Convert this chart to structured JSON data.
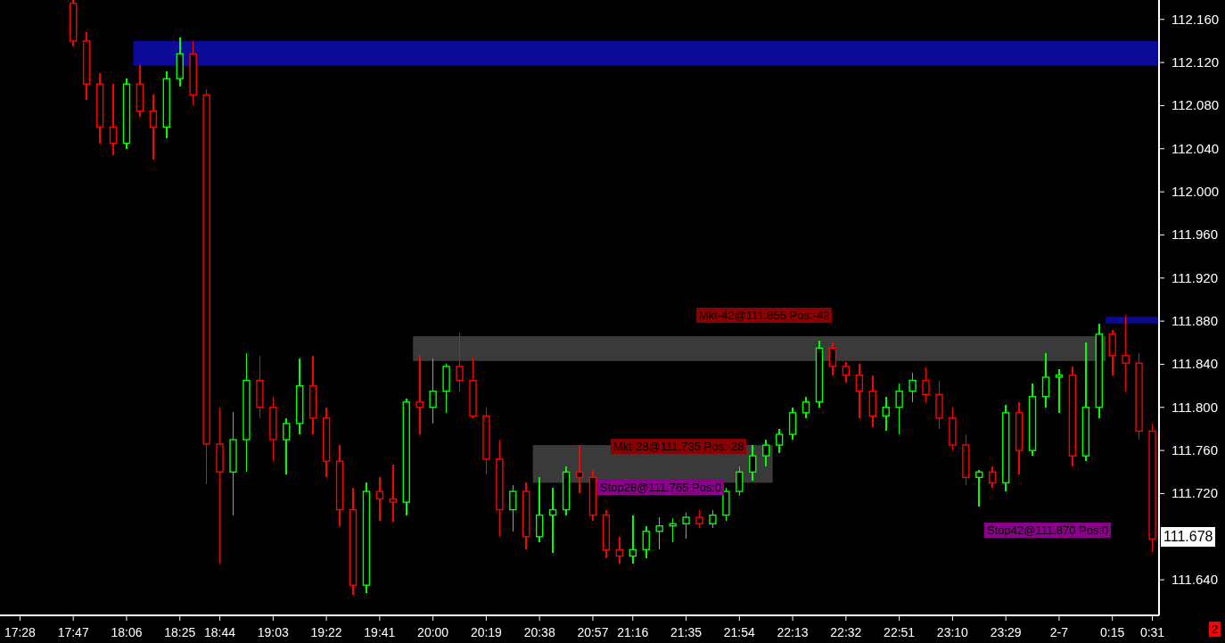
{
  "chart_data": {
    "type": "candlestick",
    "categories": [
      null,
      "17:28",
      null,
      null,
      null,
      "17:47",
      null,
      null,
      null,
      "18:06",
      null,
      null,
      null,
      "18:25",
      null,
      null,
      "18:44",
      null,
      null,
      null,
      "19:03",
      null,
      null,
      null,
      "19:22",
      null,
      null,
      null,
      "19:41",
      null,
      null,
      null,
      "20:00",
      null,
      null,
      null,
      "20:19",
      null,
      null,
      null,
      "20:38",
      null,
      null,
      null,
      "20:57",
      null,
      null,
      "21:16",
      null,
      null,
      null,
      "21:35",
      null,
      null,
      null,
      "21:54",
      null,
      null,
      null,
      "22:13",
      null,
      null,
      null,
      "22:32",
      null,
      null,
      null,
      "22:51",
      null,
      null,
      null,
      "23:10",
      null,
      null,
      null,
      "23:29",
      null,
      null,
      null,
      "2-7",
      null,
      null,
      null,
      "0:15",
      null,
      null,
      "0:31"
    ],
    "ohlc": [
      null,
      null,
      null,
      null,
      null,
      [
        112.175,
        112.178,
        112.135,
        112.14
      ],
      [
        112.14,
        112.148,
        112.085,
        112.1
      ],
      [
        112.1,
        112.11,
        112.045,
        112.06
      ],
      [
        112.06,
        112.1,
        112.034,
        112.045
      ],
      [
        112.045,
        112.105,
        112.04,
        112.1
      ],
      [
        112.1,
        112.118,
        112.07,
        112.075
      ],
      [
        112.075,
        112.09,
        112.03,
        112.06
      ],
      [
        112.06,
        112.112,
        112.05,
        112.105
      ],
      [
        112.105,
        112.143,
        112.098,
        112.128
      ],
      [
        112.128,
        112.14,
        112.08,
        112.09
      ],
      [
        112.09,
        112.095,
        111.729,
        111.766
      ],
      [
        111.766,
        111.8,
        111.655,
        111.74
      ],
      [
        111.74,
        111.796,
        111.7,
        111.77
      ],
      [
        111.77,
        111.85,
        111.74,
        111.825
      ],
      [
        111.825,
        111.848,
        111.79,
        111.8
      ],
      [
        111.8,
        111.81,
        111.75,
        111.77
      ],
      [
        111.77,
        111.79,
        111.738,
        111.785
      ],
      [
        111.785,
        111.845,
        111.775,
        111.82
      ],
      [
        111.82,
        111.848,
        111.775,
        111.79
      ],
      [
        111.79,
        111.8,
        111.735,
        111.75
      ],
      [
        111.75,
        111.765,
        111.69,
        111.705
      ],
      [
        111.705,
        111.725,
        111.626,
        111.635
      ],
      [
        111.635,
        111.73,
        111.628,
        111.722
      ],
      [
        111.722,
        111.735,
        111.695,
        111.715
      ],
      [
        111.715,
        111.747,
        111.694,
        111.712
      ],
      [
        111.712,
        111.808,
        111.7,
        111.805
      ],
      [
        111.805,
        111.848,
        111.775,
        111.8
      ],
      [
        111.8,
        111.845,
        111.785,
        111.815
      ],
      [
        111.815,
        111.84,
        111.795,
        111.838
      ],
      [
        111.838,
        111.869,
        111.815,
        111.825
      ],
      [
        111.825,
        111.845,
        111.79,
        111.792
      ],
      [
        111.792,
        111.8,
        111.738,
        111.752
      ],
      [
        111.752,
        111.77,
        111.68,
        111.705
      ],
      [
        111.705,
        111.728,
        111.685,
        111.722
      ],
      [
        111.722,
        111.73,
        111.668,
        111.68
      ],
      [
        111.68,
        111.735,
        111.675,
        111.7
      ],
      [
        111.7,
        111.725,
        111.665,
        111.705
      ],
      [
        111.705,
        111.745,
        111.7,
        111.74
      ],
      [
        111.74,
        111.765,
        111.72,
        111.735
      ],
      [
        111.735,
        111.742,
        111.695,
        111.7
      ],
      [
        111.7,
        111.705,
        111.66,
        111.668
      ],
      [
        111.668,
        111.68,
        111.655,
        111.662
      ],
      [
        111.662,
        111.7,
        111.655,
        111.668
      ],
      [
        111.668,
        111.69,
        111.66,
        111.685
      ],
      [
        111.685,
        111.698,
        111.668,
        111.69
      ],
      [
        111.69,
        111.697,
        111.675,
        111.692
      ],
      [
        111.692,
        111.702,
        111.678,
        111.698
      ],
      [
        111.698,
        111.705,
        111.688,
        111.692
      ],
      [
        111.692,
        111.705,
        111.688,
        111.7
      ],
      [
        111.7,
        111.725,
        111.695,
        111.722
      ],
      [
        111.722,
        111.745,
        111.718,
        111.74
      ],
      [
        111.74,
        111.765,
        111.732,
        111.755
      ],
      [
        111.755,
        111.77,
        111.745,
        111.765
      ],
      [
        111.765,
        111.78,
        111.758,
        111.775
      ],
      [
        111.775,
        111.8,
        111.77,
        111.795
      ],
      [
        111.795,
        111.81,
        111.79,
        111.805
      ],
      [
        111.805,
        111.862,
        111.8,
        111.855
      ],
      [
        111.855,
        111.86,
        111.83,
        111.838
      ],
      [
        111.838,
        111.842,
        111.823,
        111.83
      ],
      [
        111.83,
        111.84,
        111.79,
        111.815
      ],
      [
        111.815,
        111.83,
        111.782,
        111.792
      ],
      [
        111.792,
        111.81,
        111.778,
        111.8
      ],
      [
        111.8,
        111.822,
        111.775,
        111.815
      ],
      [
        111.815,
        111.832,
        111.805,
        111.825
      ],
      [
        111.825,
        111.837,
        111.805,
        111.812
      ],
      [
        111.812,
        111.825,
        111.78,
        111.79
      ],
      [
        111.79,
        111.8,
        111.76,
        111.765
      ],
      [
        111.765,
        111.775,
        111.728,
        111.735
      ],
      [
        111.735,
        111.742,
        111.708,
        111.74
      ],
      [
        111.74,
        111.745,
        111.725,
        111.73
      ],
      [
        111.73,
        111.802,
        111.722,
        111.795
      ],
      [
        111.795,
        111.805,
        111.738,
        111.76
      ],
      [
        111.76,
        111.822,
        111.755,
        111.81
      ],
      [
        111.81,
        111.85,
        111.8,
        111.828
      ],
      [
        111.828,
        111.835,
        111.795,
        111.83
      ],
      [
        111.83,
        111.838,
        111.745,
        111.755
      ],
      [
        111.755,
        111.86,
        111.75,
        111.8
      ],
      [
        111.8,
        111.878,
        111.79,
        111.868
      ],
      [
        111.868,
        111.872,
        111.83,
        111.848
      ],
      [
        111.848,
        111.885,
        111.815,
        111.841
      ],
      [
        111.841,
        111.85,
        111.77,
        111.778
      ],
      [
        111.778,
        111.785,
        111.666,
        111.678
      ]
    ],
    "colors": [
      null,
      null,
      null,
      null,
      null,
      "#ff0000",
      "#ff0000",
      "#ff0000",
      "#ff0000",
      "#00ff00",
      "#ff0000",
      "#ff0000",
      "#00ff00",
      "#00ff00",
      "#ff0000",
      "#ff0000",
      "#ff0000",
      "#00ff00",
      "#00ff00",
      "#ff0000",
      "#ff0000",
      "#00ff00",
      "#00ff00",
      "#ff0000",
      "#ff0000",
      "#ff0000",
      "#ff0000",
      "#00ff00",
      "#ff0000",
      "#ff0000",
      "#00ff00",
      "#ff0000",
      "#00ff00",
      "#00ff00",
      "#ff0000",
      "#ff0000",
      "#ff0000",
      "#ff0000",
      "#00ff00",
      "#ff0000",
      "#00ff00",
      "#00ff00",
      "#00ff00",
      "#ff0000",
      "#ff0000",
      "#ff0000",
      "#ff0000",
      "#00ff00",
      "#00ff00",
      "#00ff00",
      "#00ff00",
      "#00ff00",
      "#ff0000",
      "#00ff00",
      "#00ff00",
      "#00ff00",
      "#00ff00",
      "#00ff00",
      "#00ff00",
      "#00ff00",
      "#00ff00",
      "#00ff00",
      "#ff0000",
      "#ff0000",
      "#ff0000",
      "#ff0000",
      "#00ff00",
      "#00ff00",
      "#00ff00",
      "#ff0000",
      "#ff0000",
      "#ff0000",
      "#ff0000",
      "#00ff00",
      "#ff0000",
      "#00ff00",
      "#ff0000",
      "#00ff00",
      "#00ff00",
      "#00ff00",
      "#ff0000",
      "#00ff00",
      "#00ff00",
      "#ff0000",
      "#ff0000",
      "#ff0000",
      "#ff0000"
    ],
    "ylim": [
      111.607,
      112.178
    ],
    "yticks": [
      {
        "value": 111.64,
        "label": "111.640"
      },
      {
        "value": 111.72,
        "label": "111.720"
      },
      {
        "value": 111.76,
        "label": "111.760"
      },
      {
        "value": 111.8,
        "label": "111.800"
      },
      {
        "value": 111.84,
        "label": "111.840"
      },
      {
        "value": 111.88,
        "label": "111.880"
      },
      {
        "value": 111.92,
        "label": "111.920"
      },
      {
        "value": 111.96,
        "label": "111.960"
      },
      {
        "value": 112.0,
        "label": "112.000"
      },
      {
        "value": 112.04,
        "label": "112.040"
      },
      {
        "value": 112.08,
        "label": "112.080"
      },
      {
        "value": 112.12,
        "label": "112.120"
      },
      {
        "value": 112.16,
        "label": "112.160"
      }
    ],
    "bands": [
      {
        "axis": "y",
        "from": 112.117,
        "to": 112.14,
        "color": "#0a0a96"
      },
      {
        "axis": "y",
        "from": 111.843,
        "to": 111.866,
        "color": "#3a3a3a"
      },
      {
        "axis": "y",
        "from": 111.73,
        "to": 111.765,
        "color": "#3a3a3a"
      },
      {
        "axis": "y",
        "from": 111.878,
        "to": 111.884,
        "color": "#0a0a96"
      }
    ],
    "annotations": [
      "Mkt-42@111.855 Pos:-42",
      "Mkt-28@111.735 Pos:-28",
      "Stop28@111.765 Pos:0",
      "Stop42@111.870 Pos:0",
      "111.678",
      "2"
    ],
    "grid": false
  }
}
